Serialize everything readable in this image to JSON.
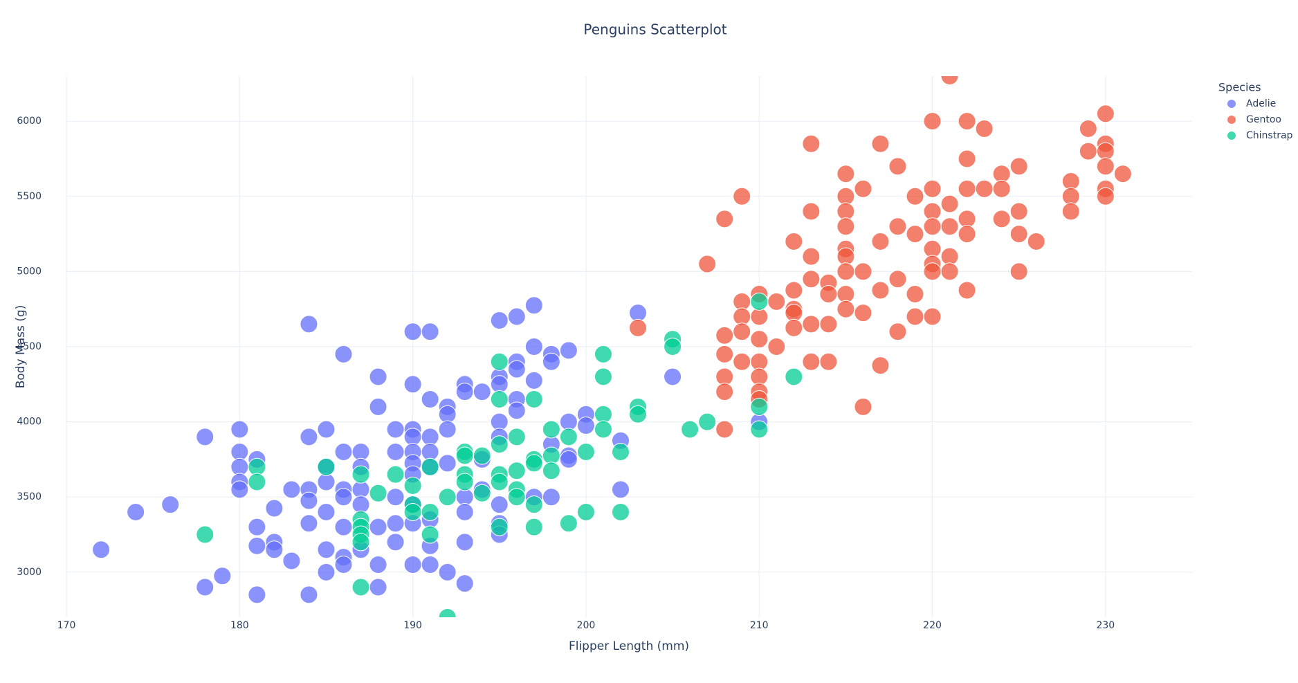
{
  "chart_data": {
    "type": "scatter",
    "title": "Penguins Scatterplot",
    "x_label": "Flipper Length (mm)",
    "y_label": "Body Mass (g)",
    "legend_title": "Species",
    "legend": "right",
    "grid": true,
    "xlim": [
      170,
      235
    ],
    "xticks": [
      170,
      180,
      190,
      200,
      210,
      220,
      230
    ],
    "ylim": [
      2700,
      6300
    ],
    "yticks": [
      3000,
      3500,
      4000,
      4500,
      5000,
      5500,
      6000
    ],
    "series": [
      {
        "name": "Adelie",
        "color": "#636efa",
        "x": [
          172,
          174,
          176,
          178,
          178,
          179,
          180,
          180,
          180,
          180,
          180,
          181,
          181,
          181,
          181,
          182,
          182,
          182,
          183,
          183,
          184,
          184,
          184,
          184,
          184,
          184,
          185,
          185,
          185,
          185,
          185,
          185,
          186,
          186,
          186,
          186,
          186,
          186,
          186,
          187,
          187,
          187,
          187,
          187,
          188,
          188,
          188,
          188,
          188,
          189,
          189,
          189,
          189,
          189,
          190,
          190,
          190,
          190,
          190,
          190,
          190,
          190,
          190,
          190,
          191,
          191,
          191,
          191,
          191,
          191,
          191,
          191,
          192,
          192,
          192,
          192,
          192,
          193,
          193,
          193,
          193,
          193,
          193,
          194,
          194,
          194,
          195,
          195,
          195,
          195,
          195,
          195,
          195,
          195,
          196,
          196,
          196,
          196,
          196,
          197,
          197,
          197,
          197,
          198,
          198,
          198,
          198,
          199,
          199,
          199,
          199,
          200,
          200,
          202,
          202,
          203,
          205,
          210
        ],
        "values": [
          3150,
          3400,
          3450,
          3900,
          2900,
          2975,
          3950,
          3800,
          3700,
          3600,
          3550,
          3750,
          3300,
          3175,
          2850,
          3200,
          3150,
          3425,
          3550,
          3075,
          4650,
          3900,
          3550,
          3475,
          3325,
          2850,
          3950,
          3700,
          3600,
          3400,
          3150,
          3000,
          4450,
          3800,
          3550,
          3500,
          3300,
          3100,
          3050,
          3800,
          3700,
          3550,
          3450,
          3150,
          4300,
          4100,
          3300,
          3050,
          2900,
          3950,
          3800,
          3500,
          3325,
          3200,
          4600,
          4250,
          3950,
          3900,
          3800,
          3725,
          3650,
          3450,
          3325,
          3050,
          4600,
          4150,
          3900,
          3800,
          3700,
          3350,
          3175,
          3050,
          4100,
          4050,
          3950,
          3725,
          3000,
          4250,
          4200,
          3500,
          3400,
          3200,
          2925,
          4200,
          3750,
          3550,
          4675,
          4300,
          4250,
          4000,
          3900,
          3450,
          3325,
          3250,
          4700,
          4400,
          4350,
          4150,
          4075,
          4775,
          4500,
          4275,
          3500,
          4450,
          4400,
          3850,
          3500,
          4475,
          4000,
          3775,
          3750,
          4050,
          3975,
          3875,
          3550,
          4725,
          4300,
          4000
        ]
      },
      {
        "name": "Gentoo",
        "color": "#EF553B",
        "x": [
          203,
          207,
          208,
          208,
          208,
          208,
          208,
          208,
          209,
          209,
          209,
          209,
          209,
          210,
          210,
          210,
          210,
          210,
          210,
          210,
          211,
          211,
          212,
          212,
          212,
          212,
          212,
          213,
          213,
          213,
          213,
          213,
          213,
          214,
          214,
          214,
          214,
          215,
          215,
          215,
          215,
          215,
          215,
          215,
          215,
          215,
          216,
          216,
          216,
          216,
          217,
          217,
          217,
          217,
          218,
          218,
          218,
          218,
          219,
          219,
          219,
          219,
          220,
          220,
          220,
          220,
          220,
          220,
          220,
          220,
          221,
          221,
          221,
          221,
          221,
          222,
          222,
          222,
          222,
          222,
          222,
          223,
          223,
          224,
          224,
          224,
          225,
          225,
          225,
          225,
          226,
          228,
          228,
          228,
          229,
          229,
          230,
          230,
          230,
          230,
          230,
          230,
          231
        ],
        "values": [
          4625,
          5050,
          5350,
          4575,
          4450,
          4300,
          4200,
          3950,
          5500,
          4800,
          4700,
          4600,
          4400,
          4850,
          4700,
          4550,
          4400,
          4300,
          4200,
          4150,
          4800,
          4500,
          5200,
          4875,
          4750,
          4725,
          4625,
          5850,
          5400,
          5100,
          4950,
          4650,
          4400,
          4925,
          4850,
          4650,
          4400,
          5650,
          5500,
          5400,
          5300,
          5150,
          5100,
          5000,
          4850,
          4750,
          5550,
          5000,
          4725,
          4100,
          5850,
          5200,
          4875,
          4375,
          5700,
          5300,
          4950,
          4600,
          5500,
          5250,
          4850,
          4700,
          6000,
          5550,
          5400,
          5300,
          5150,
          5050,
          5000,
          4700,
          6300,
          5450,
          5300,
          5100,
          5000,
          6000,
          5750,
          5550,
          5350,
          5250,
          4875,
          5950,
          5550,
          5650,
          5550,
          5350,
          5700,
          5400,
          5250,
          5000,
          5200,
          5600,
          5500,
          5400,
          5950,
          5800,
          6050,
          5850,
          5800,
          5700,
          5550,
          5500,
          5650
        ]
      },
      {
        "name": "Chinstrap",
        "color": "#00cc96",
        "x": [
          178,
          181,
          181,
          185,
          187,
          187,
          187,
          187,
          187,
          187,
          188,
          189,
          190,
          190,
          190,
          191,
          191,
          191,
          192,
          192,
          193,
          193,
          193,
          193,
          194,
          194,
          195,
          195,
          195,
          195,
          195,
          195,
          196,
          196,
          196,
          196,
          197,
          197,
          197,
          197,
          197,
          198,
          198,
          198,
          199,
          199,
          200,
          200,
          201,
          201,
          201,
          201,
          202,
          202,
          203,
          203,
          205,
          205,
          206,
          207,
          210,
          210,
          210,
          212
        ],
        "values": [
          3250,
          3700,
          3600,
          3700,
          3650,
          3350,
          3300,
          3250,
          3200,
          2900,
          3525,
          3650,
          3575,
          3450,
          3400,
          3700,
          3400,
          3250,
          3500,
          2700,
          3800,
          3775,
          3650,
          3600,
          3775,
          3525,
          4400,
          4150,
          3850,
          3650,
          3600,
          3300,
          3900,
          3675,
          3550,
          3500,
          4150,
          3750,
          3725,
          3450,
          3300,
          3950,
          3775,
          3675,
          3900,
          3325,
          3800,
          3400,
          4450,
          4300,
          4050,
          3950,
          3800,
          3400,
          4100,
          4050,
          4550,
          4500,
          3950,
          4000,
          4800,
          4100,
          3950,
          4300
        ]
      }
    ]
  }
}
